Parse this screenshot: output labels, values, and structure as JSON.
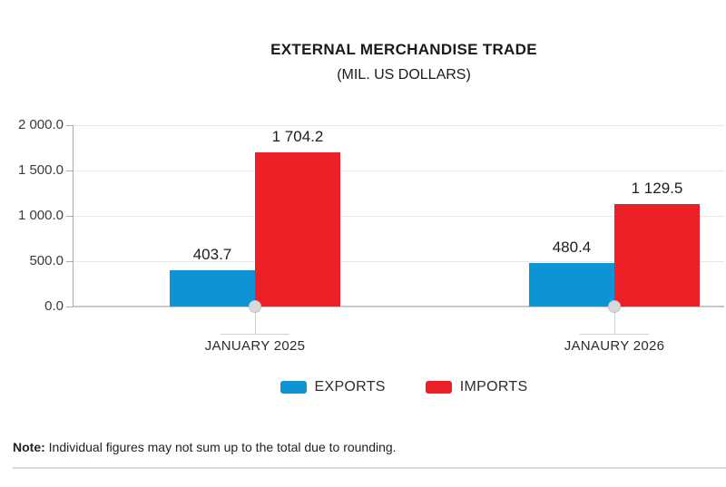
{
  "title": "EXTERNAL MERCHANDISE TRADE",
  "subtitle": "(MIL. US DOLLARS)",
  "chart_data": {
    "type": "bar",
    "title": "EXTERNAL MERCHANDISE TRADE",
    "subtitle": "(MIL. US DOLLARS)",
    "categories": [
      "JANUARY 2025",
      "JANAURY 2026"
    ],
    "series": [
      {
        "name": "EXPORTS",
        "color": "#0e94d4",
        "values": [
          403.7,
          480.4
        ],
        "value_labels": [
          "403.7",
          "480.4"
        ]
      },
      {
        "name": "IMPORTS",
        "color": "#ec2127",
        "values": [
          1704.2,
          1129.5
        ],
        "value_labels": [
          "1 704.2",
          "1 129.5"
        ]
      }
    ],
    "ylim": [
      0,
      2000
    ],
    "yticks": [
      0,
      500,
      1000,
      1500,
      2000
    ],
    "ytick_labels": [
      "0.0",
      "500.0",
      "1 000.0",
      "1 500.0",
      "2 000.0"
    ],
    "grid": true,
    "legend_position": "bottom"
  },
  "legend": {
    "items": [
      {
        "label": "EXPORTS",
        "color": "#0e94d4"
      },
      {
        "label": "IMPORTS",
        "color": "#ec2127"
      }
    ]
  },
  "note": {
    "label": "Note:",
    "text": " Individual figures may not sum up to the total due to rounding."
  },
  "colors": {
    "exports_blue": "#0e94d4",
    "imports_red": "#ec2127",
    "gridline": "#e8e8e8",
    "axis_gray": "#ababab",
    "marker_gray": "#d9d9d9"
  }
}
